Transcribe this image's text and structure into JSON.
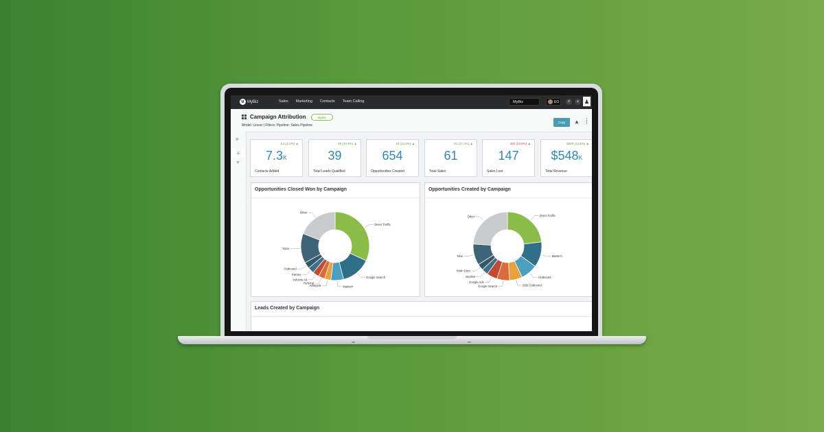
{
  "nav": {
    "logo": "MyBiz",
    "menu": [
      "Sales",
      "Marketing",
      "Contacts",
      "Team Calling"
    ],
    "account": "MyBiz",
    "user_initials": "EO"
  },
  "header": {
    "title": "Campaign Attribution",
    "badge": "MyBiz",
    "subtitle": "Model: Linear | Filters: Pipeline: Sales Pipeline",
    "copy_label": "Copy"
  },
  "kpis": [
    {
      "change": "6.5 (2.0%)",
      "value": "7.3",
      "unit": "K",
      "prefix": "",
      "label": "Contacts Added",
      "trend": "up"
    },
    {
      "change": "89 (40.9%)",
      "value": "39",
      "unit": "",
      "prefix": "",
      "label": "Total Leads Qualified",
      "trend": "up"
    },
    {
      "change": "40 (24.3%)",
      "value": "654",
      "unit": "",
      "prefix": "",
      "label": "Opportunities Created",
      "trend": "up"
    },
    {
      "change": "91 (27.4%)",
      "value": "61",
      "unit": "",
      "prefix": "",
      "label": "Total Sales",
      "trend": "up"
    },
    {
      "change": "400 (23.8%)",
      "value": "147",
      "unit": "",
      "prefix": "",
      "label": "Sales Lost",
      "trend": "up-bad"
    },
    {
      "change": "$900 (24.5%)",
      "value": "548",
      "unit": "K",
      "prefix": "$",
      "label": "Total Revenue",
      "trend": "up"
    }
  ],
  "colors": {
    "up": "#6aa535",
    "bad": "#d9463b",
    "value": "#2e88b8",
    "accent": "#4a9ab1"
  },
  "panels": {
    "closed_won_title": "Opportunities Closed Won by Campaign",
    "created_title": "Opportunities Created by Campaign",
    "leads_title": "Leads Created by Campaign"
  },
  "chart_data": [
    {
      "type": "pie",
      "title": "Opportunities Closed Won by Campaign",
      "labels": [
        "Direct Traffic",
        "Google Search",
        "Martech",
        "AdWords",
        "Referral",
        "Industry Ad",
        "Partner",
        "Outbound",
        "None",
        "Other"
      ],
      "values": [
        32,
        14,
        6,
        3,
        3,
        3,
        3,
        3,
        14,
        19
      ],
      "colors": [
        "#8cbc48",
        "#2f6f88",
        "#4aa0c0",
        "#e8a038",
        "#dd6a3a",
        "#c24a30",
        "#3e7088",
        "#34586a",
        "#3d6477",
        "#c9cccd"
      ]
    },
    {
      "type": "pie",
      "title": "Opportunities Created by Campaign",
      "labels": [
        "Direct Traffic",
        "Martech",
        "Outbound",
        "B2B Outbound",
        "Google Search",
        "Google Ads",
        "Interlink",
        "Ninth Door",
        "Nine",
        "Other"
      ],
      "values": [
        23,
        12,
        8,
        6,
        6,
        5,
        3,
        3,
        10,
        24
      ],
      "colors": [
        "#8cbc48",
        "#2f6f88",
        "#4aa0c0",
        "#e8a038",
        "#dd6a3a",
        "#c24a30",
        "#3e7088",
        "#34586a",
        "#3d6477",
        "#c9cccd"
      ]
    }
  ]
}
